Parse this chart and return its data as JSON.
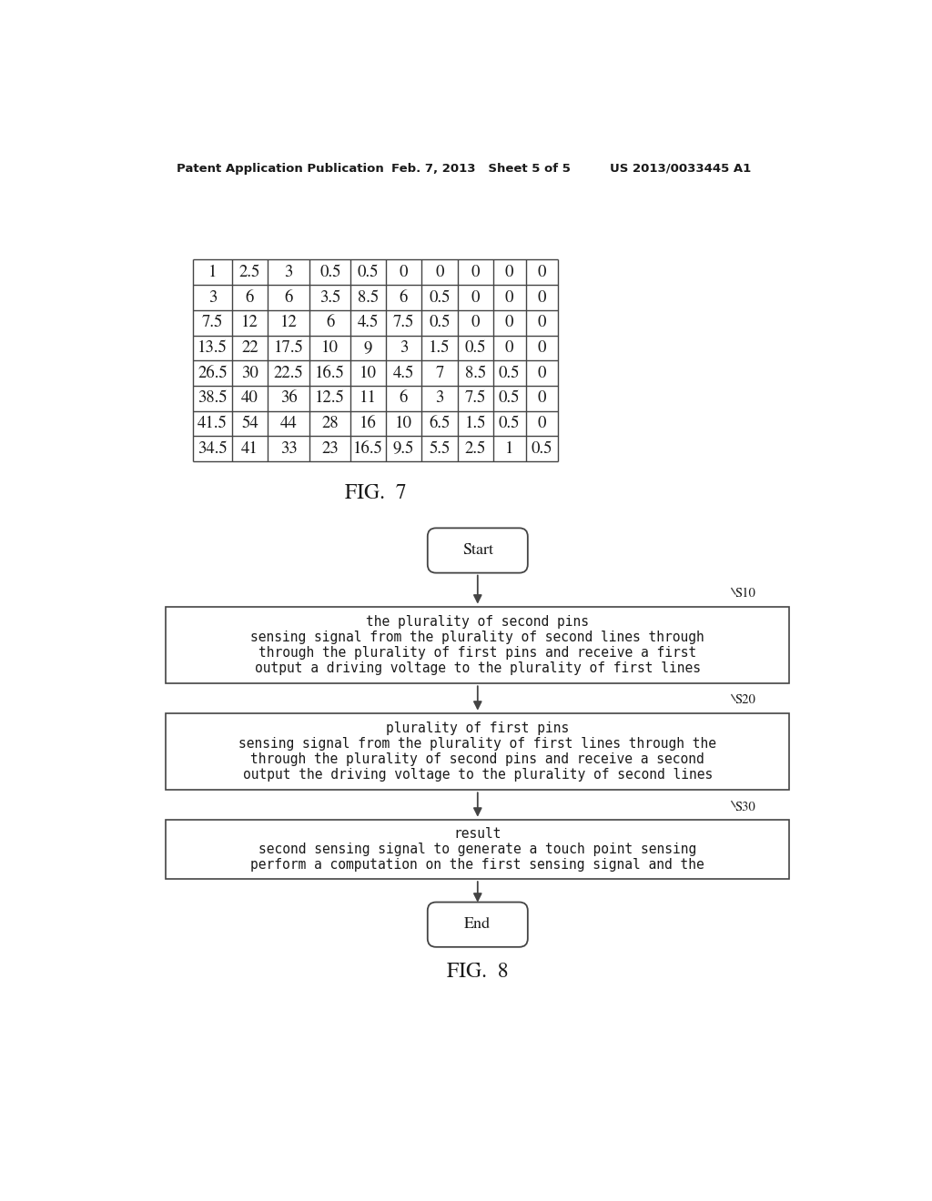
{
  "header_left": "Patent Application Publication",
  "header_mid": "Feb. 7, 2013   Sheet 5 of 5",
  "header_right": "US 2013/0033445 A1",
  "table_data": [
    [
      "1",
      "2.5",
      "3",
      "0.5",
      "0.5",
      "0",
      "0",
      "0",
      "0",
      "0"
    ],
    [
      "3",
      "6",
      "6",
      "3.5",
      "8.5",
      "6",
      "0.5",
      "0",
      "0",
      "0"
    ],
    [
      "7.5",
      "12",
      "12",
      "6",
      "4.5",
      "7.5",
      "0.5",
      "0",
      "0",
      "0"
    ],
    [
      "13.5",
      "22",
      "17.5",
      "10",
      "9",
      "3",
      "1.5",
      "0.5",
      "0",
      "0"
    ],
    [
      "26.5",
      "30",
      "22.5",
      "16.5",
      "10",
      "4.5",
      "7",
      "8.5",
      "0.5",
      "0"
    ],
    [
      "38.5",
      "40",
      "36",
      "12.5",
      "11",
      "6",
      "3",
      "7.5",
      "0.5",
      "0"
    ],
    [
      "41.5",
      "54",
      "44",
      "28",
      "16",
      "10",
      "6.5",
      "1.5",
      "0.5",
      "0"
    ],
    [
      "34.5",
      "41",
      "33",
      "23",
      "16.5",
      "9.5",
      "5.5",
      "2.5",
      "1",
      "0.5"
    ]
  ],
  "fig7_label": "FIG.  7",
  "fig8_label": "FIG.  8",
  "start_label": "Start",
  "end_label": "End",
  "s10_label": "S10",
  "s20_label": "S20",
  "s30_label": "S30",
  "box1_lines": [
    "output a driving voltage to the plurality of first lines",
    "through the plurality of first pins and receive a first",
    "sensing signal from the plurality of second lines through",
    "the plurality of second pins"
  ],
  "box2_lines": [
    "output the driving voltage to the plurality of second lines",
    "through the plurality of second pins and receive a second",
    "sensing signal from the plurality of first lines through the",
    "plurality of first pins"
  ],
  "box3_lines": [
    "perform a computation on the first sensing signal and the",
    "second sensing signal to generate a touch point sensing",
    "result"
  ],
  "bg_color": "#ffffff",
  "text_color": "#1a1a1a",
  "line_color": "#444444"
}
